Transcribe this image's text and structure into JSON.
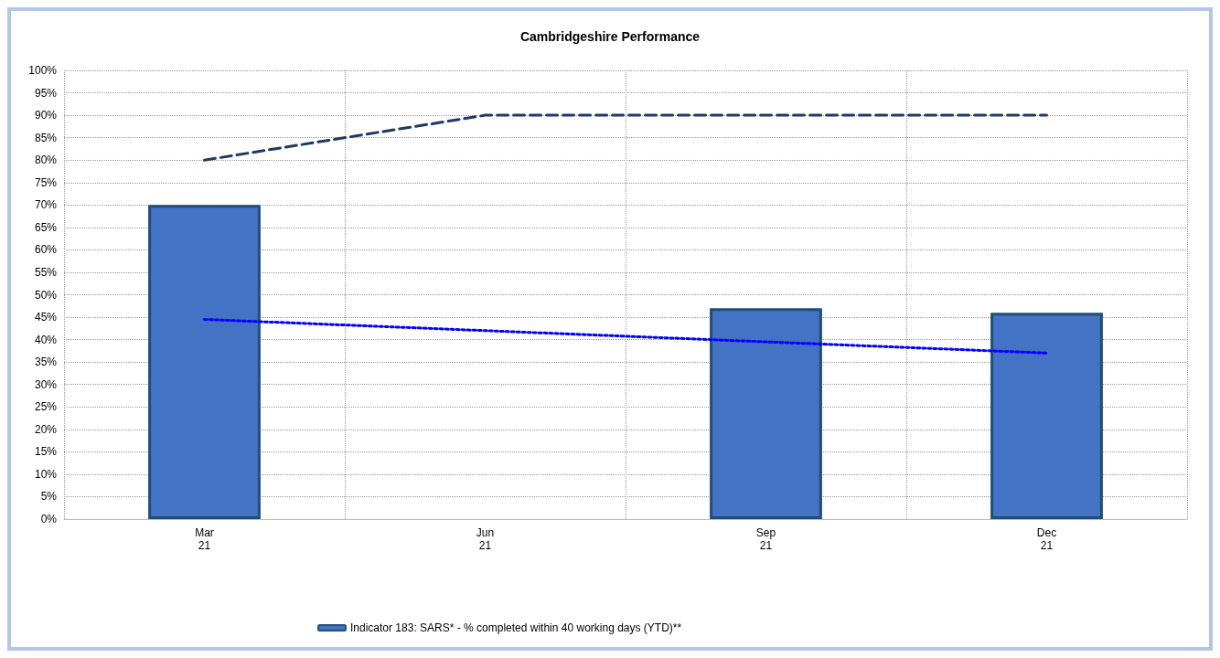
{
  "chart_data": {
    "type": "bar",
    "title": "Cambridgeshire Performance",
    "categories": [
      "Mar\n21",
      "Jun\n21",
      "Sep\n21",
      "Dec\n21"
    ],
    "series": [
      {
        "name": "Indicator 183: SARS* - % completed within 40 working days (YTD)**",
        "color": "#4472c4",
        "values": [
          70,
          null,
          47,
          46
        ]
      },
      {
        "type": "line",
        "color": "#1f3864",
        "line_style": "dashed",
        "values": [
          80,
          90,
          90,
          90
        ]
      },
      {
        "type": "line",
        "color": "#0000ff",
        "line_style": "dotted",
        "values": [
          44.5,
          42,
          39.5,
          37
        ]
      }
    ],
    "ylim": [
      0,
      100
    ],
    "yticks": [
      {
        "value": 0,
        "label": "0%"
      },
      {
        "value": 5,
        "label": "5%"
      },
      {
        "value": 10,
        "label": "10%"
      },
      {
        "value": 15,
        "label": "15%"
      },
      {
        "value": 20,
        "label": "20%"
      },
      {
        "value": 25,
        "label": "25%"
      },
      {
        "value": 30,
        "label": "30%"
      },
      {
        "value": 35,
        "label": "35%"
      },
      {
        "value": 40,
        "label": "40%"
      },
      {
        "value": 45,
        "label": "45%"
      },
      {
        "value": 50,
        "label": "50%"
      },
      {
        "value": 55,
        "label": "55%"
      },
      {
        "value": 60,
        "label": "60%"
      },
      {
        "value": 65,
        "label": "65%"
      },
      {
        "value": 70,
        "label": "70%"
      },
      {
        "value": 75,
        "label": "75%"
      },
      {
        "value": 80,
        "label": "80%"
      },
      {
        "value": 85,
        "label": "85%"
      },
      {
        "value": 90,
        "label": "90%"
      },
      {
        "value": 95,
        "label": "95%"
      },
      {
        "value": 100,
        "label": "100%"
      }
    ],
    "grid": true,
    "legend": "bottom",
    "marker": "none"
  }
}
